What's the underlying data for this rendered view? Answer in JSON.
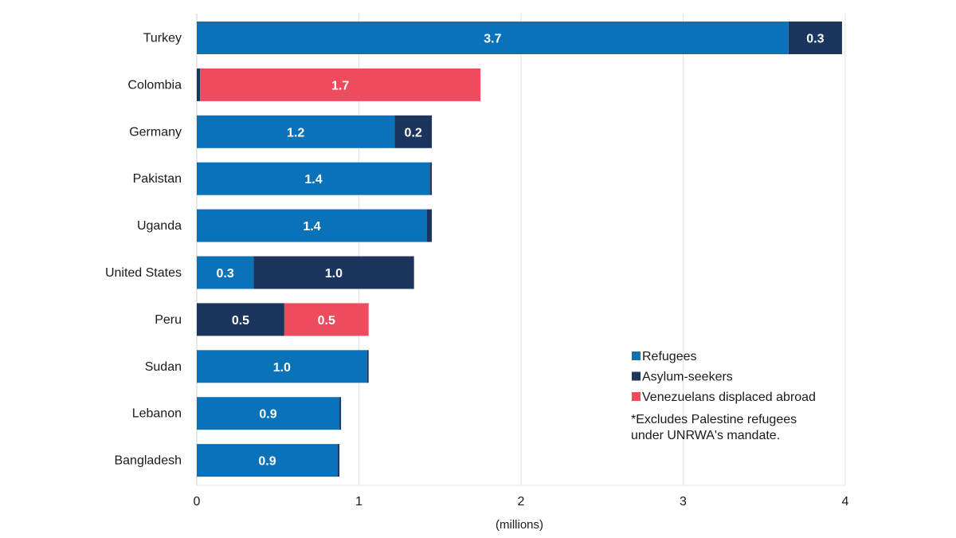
{
  "chart_data": {
    "type": "bar",
    "orientation": "horizontal",
    "stacked": true,
    "categories": [
      "Turkey",
      "Colombia",
      "Germany",
      "Pakistan",
      "Uganda",
      "United States",
      "Peru",
      "Sudan",
      "Lebanon",
      "Bangladesh"
    ],
    "series": [
      {
        "name": "Refugees",
        "color": "#0a72b8",
        "values": [
          3.65,
          0.0,
          1.22,
          1.44,
          1.42,
          0.35,
          0.0,
          1.05,
          0.88,
          0.87
        ],
        "labels": [
          "3.7",
          "",
          "1.2",
          "1.4",
          "1.4",
          "0.3",
          "",
          "1.0",
          "0.9",
          "0.9"
        ]
      },
      {
        "name": "Asylum-seekers",
        "color": "#1b355e",
        "values": [
          0.33,
          0.02,
          0.23,
          0.01,
          0.03,
          0.99,
          0.54,
          0.01,
          0.01,
          0.01
        ],
        "labels": [
          "0.3",
          "",
          "0.2",
          "",
          "",
          "1.0",
          "0.5",
          "",
          "",
          ""
        ]
      },
      {
        "name": "Venezuelans displaced abroad",
        "color": "#ee4b5f",
        "values": [
          0.0,
          1.73,
          0.0,
          0.0,
          0.0,
          0.0,
          0.52,
          0.0,
          0.0,
          0.0
        ],
        "labels": [
          "",
          "1.7",
          "",
          "",
          "",
          "",
          "0.5",
          "",
          "",
          ""
        ]
      }
    ],
    "xlim": [
      0,
      4
    ],
    "xticks": [
      "0",
      "1",
      "2",
      "3",
      "4"
    ],
    "xlabel": "(millions)",
    "ylabel": "",
    "title": "",
    "grid": true,
    "legend_position": "bottom-right",
    "note_lines": [
      "*Excludes Palestine refugees",
      "under UNRWA's mandate."
    ]
  }
}
